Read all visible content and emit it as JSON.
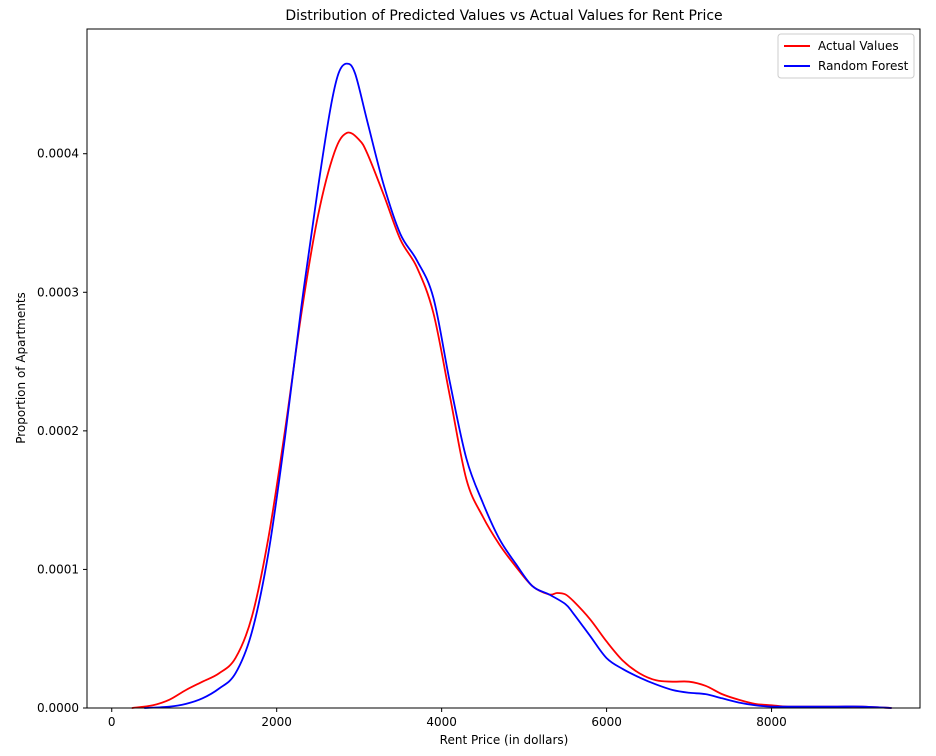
{
  "chart_data": {
    "type": "line",
    "title": "Distribution of Predicted Values vs Actual Values for Rent Price",
    "xlabel": "Rent Price (in dollars)",
    "ylabel": "Proportion of Apartments",
    "xlim": [
      -300,
      9800
    ],
    "ylim": [
      0,
      0.00049
    ],
    "x_ticks": [
      0,
      2000,
      4000,
      6000,
      8000
    ],
    "x_tick_labels": [
      "0",
      "2000",
      "4000",
      "6000",
      "8000"
    ],
    "y_ticks": [
      0,
      0.0001,
      0.0002,
      0.0003,
      0.0004
    ],
    "y_tick_labels": [
      "0.0000",
      "0.0001",
      "0.0002",
      "0.0003",
      "0.0004"
    ],
    "grid": false,
    "legend_position": "top-right",
    "series": [
      {
        "name": "Actual Values",
        "color": "#ff0000",
        "x": [
          250,
          500,
          700,
          900,
          1100,
          1300,
          1500,
          1700,
          1900,
          2100,
          2300,
          2500,
          2700,
          2850,
          3000,
          3100,
          3300,
          3500,
          3700,
          3900,
          4100,
          4300,
          4500,
          4700,
          4900,
          5100,
          5300,
          5400,
          5500,
          5600,
          5800,
          6000,
          6200,
          6400,
          6600,
          6800,
          7000,
          7200,
          7400,
          7600,
          7800,
          8000,
          8200,
          8500,
          8800,
          9100,
          9450
        ],
        "y": [
          0,
          2e-06,
          6e-06,
          1.3e-05,
          1.9e-05,
          2.5e-05,
          3.6e-05,
          6.6e-05,
          0.000123,
          0.0002,
          0.000285,
          0.000355,
          0.000401,
          0.000415,
          0.00041,
          0.0004,
          0.00037,
          0.000338,
          0.000318,
          0.000285,
          0.000225,
          0.000165,
          0.000138,
          0.000118,
          0.000102,
          8.8e-05,
          8.2e-05,
          8.3e-05,
          8.2e-05,
          7.7e-05,
          6.4e-05,
          4.8e-05,
          3.4e-05,
          2.5e-05,
          2e-05,
          1.9e-05,
          1.9e-05,
          1.6e-05,
          1e-05,
          6e-06,
          3e-06,
          2e-06,
          1e-06,
          1e-06,
          1e-06,
          1e-06,
          0
        ]
      },
      {
        "name": "Random Forest",
        "color": "#0000ff",
        "x": [
          400,
          700,
          900,
          1100,
          1300,
          1500,
          1700,
          1900,
          2100,
          2300,
          2500,
          2650,
          2750,
          2850,
          2950,
          3100,
          3300,
          3500,
          3700,
          3900,
          4100,
          4300,
          4500,
          4700,
          4900,
          5100,
          5300,
          5500,
          5600,
          5800,
          6000,
          6200,
          6400,
          6600,
          6800,
          7000,
          7200,
          7400,
          7600,
          7800,
          8000,
          8200,
          8500,
          8800,
          9100,
          9450
        ],
        "y": [
          0,
          1e-06,
          3e-06,
          7e-06,
          1.4e-05,
          2.5e-05,
          5.5e-05,
          0.000112,
          0.000195,
          0.00029,
          0.000375,
          0.000432,
          0.000458,
          0.000465,
          0.000458,
          0.000423,
          0.000377,
          0.000342,
          0.000323,
          0.000296,
          0.000235,
          0.00018,
          0.000148,
          0.000122,
          0.000104,
          8.8e-05,
          8.2e-05,
          7.5e-05,
          6.8e-05,
          5.2e-05,
          3.6e-05,
          2.8e-05,
          2.2e-05,
          1.7e-05,
          1.3e-05,
          1.1e-05,
          1e-05,
          7e-06,
          4e-06,
          2e-06,
          1e-06,
          1e-06,
          1e-06,
          1e-06,
          1e-06,
          0
        ]
      }
    ]
  }
}
